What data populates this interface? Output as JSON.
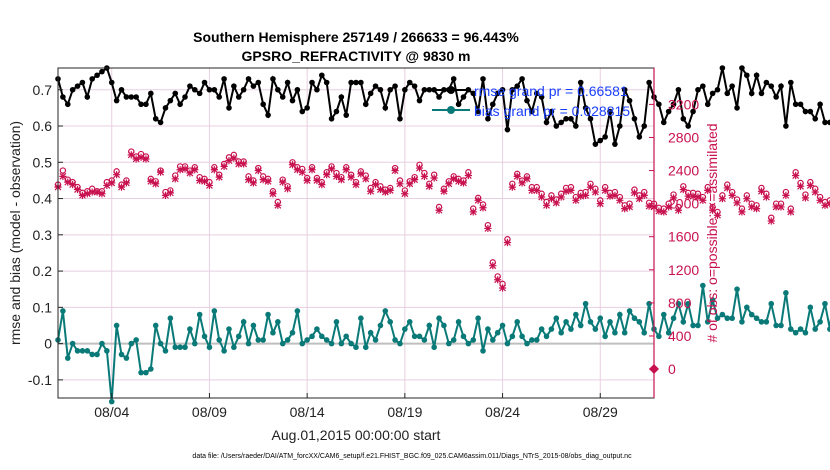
{
  "chart_data": {
    "type": "line",
    "title_line1": "Southern Hemisphere 257149 / 266633 = 96.443%",
    "title_line2": "GPSRO_REFRACTIVITY @ 9830 m",
    "xlabel": "Aug.01,2015 00:00:00 start",
    "ylabel_left": "rmse and bias (model - observation)",
    "ylabel_right": "# of obs: o=possible; ×=assimilated",
    "footer": "data file: /Users/raeder/DAI/ATM_forcXX/CAM6_setup/f.e21.FHIST_BGC.f09_025.CAM6assim.011/Diags_NTrS_2015-08/obs_diag_output.nc",
    "x_range": [
      1.25,
      31.75
    ],
    "xticks": [
      {
        "value": 4,
        "label": "08/04"
      },
      {
        "value": 9,
        "label": "08/09"
      },
      {
        "value": 14,
        "label": "08/14"
      },
      {
        "value": 19,
        "label": "08/19"
      },
      {
        "value": 24,
        "label": "08/24"
      },
      {
        "value": 29,
        "label": "08/29"
      }
    ],
    "ylim_left": [
      -0.15,
      0.76
    ],
    "yticks_left": [
      "-0.1",
      "0",
      "0.1",
      "0.2",
      "0.3",
      "0.4",
      "0.5",
      "0.6",
      "0.7"
    ],
    "ylim_right": [
      -350,
      3640
    ],
    "yticks_right": [
      "0",
      "400",
      "800",
      "1200",
      "1600",
      "2000",
      "2400",
      "2800",
      "3200"
    ],
    "zero_line": 0,
    "legend": [
      {
        "label": "rmse grand pr = 0.66581",
        "color": "#000000"
      },
      {
        "label": "bias grand pr = 0.028815",
        "color": "#0a7a78"
      }
    ],
    "colors": {
      "rmse": "#000000",
      "bias": "#0a7a78",
      "obs": "#c8114f",
      "zero": "#bfbfbf",
      "grid": "#e8cfe0"
    },
    "series": [
      {
        "name": "rmse",
        "axis": "left",
        "step": 0.25,
        "x_start": 1.25,
        "values": [
          0.73,
          0.68,
          0.66,
          0.7,
          0.71,
          0.72,
          0.68,
          0.73,
          0.74,
          0.75,
          0.76,
          0.72,
          0.67,
          0.7,
          0.68,
          0.68,
          0.68,
          0.66,
          0.66,
          0.69,
          0.62,
          0.61,
          0.65,
          0.67,
          0.69,
          0.66,
          0.68,
          0.71,
          0.7,
          0.69,
          0.72,
          0.7,
          0.7,
          0.68,
          0.73,
          0.65,
          0.71,
          0.68,
          0.7,
          0.73,
          0.71,
          0.72,
          0.66,
          0.63,
          0.73,
          0.7,
          0.68,
          0.72,
          0.67,
          0.7,
          0.64,
          0.65,
          0.72,
          0.7,
          0.74,
          0.72,
          0.62,
          0.64,
          0.68,
          0.63,
          0.72,
          0.72,
          0.72,
          0.66,
          0.69,
          0.71,
          0.7,
          0.65,
          0.7,
          0.71,
          0.62,
          0.7,
          0.72,
          0.71,
          0.67,
          0.7,
          0.7,
          0.7,
          0.68,
          0.7,
          0.7,
          0.73,
          0.66,
          0.68,
          0.7,
          0.69,
          0.64,
          0.73,
          0.62,
          0.66,
          0.69,
          0.7,
          0.59,
          0.7,
          0.71,
          0.73,
          0.67,
          0.64,
          0.69,
          0.68,
          0.61,
          0.64,
          0.6,
          0.61,
          0.62,
          0.62,
          0.6,
          0.72,
          0.65,
          0.62,
          0.55,
          0.56,
          0.57,
          0.64,
          0.55,
          0.6,
          0.7,
          0.67,
          0.62,
          0.57,
          0.6,
          0.72,
          0.68,
          0.66,
          0.61,
          0.64,
          0.66,
          0.7,
          0.62,
          0.6,
          0.64,
          0.7,
          0.71,
          0.66,
          0.69,
          0.7,
          0.76,
          0.69,
          0.71,
          0.65,
          0.76,
          0.74,
          0.69,
          0.74,
          0.69,
          0.72,
          0.71,
          0.68,
          0.71,
          0.6,
          0.72,
          0.66,
          0.66,
          0.64,
          0.64,
          0.62,
          0.66,
          0.61,
          0.61,
          0.6,
          0.58,
          0.58
        ]
      },
      {
        "name": "bias",
        "axis": "left",
        "step": 0.25,
        "x_start": 1.25,
        "values": [
          0.01,
          0.09,
          -0.04,
          0.0,
          -0.02,
          -0.02,
          -0.02,
          -0.03,
          -0.03,
          0.0,
          -0.02,
          -0.16,
          0.05,
          -0.03,
          -0.04,
          0.0,
          0.01,
          -0.08,
          -0.08,
          -0.07,
          0.05,
          0.0,
          -0.02,
          0.07,
          -0.01,
          -0.01,
          -0.01,
          0.04,
          0.0,
          0.08,
          0.02,
          -0.01,
          0.09,
          0.01,
          -0.02,
          0.04,
          -0.01,
          0.02,
          0.06,
          0.0,
          0.05,
          0.01,
          0.01,
          0.08,
          0.03,
          0.06,
          0.0,
          0.01,
          0.03,
          0.09,
          0.0,
          0.01,
          0.02,
          0.04,
          0.02,
          0.01,
          0.0,
          0.06,
          0.0,
          0.02,
          0.0,
          -0.01,
          0.07,
          -0.01,
          0.03,
          0.01,
          0.05,
          0.09,
          0.06,
          0.01,
          0.0,
          0.04,
          0.06,
          0.02,
          0.02,
          0.01,
          0.05,
          -0.01,
          0.07,
          0.05,
          0.0,
          0.01,
          0.06,
          0.02,
          0.0,
          0.01,
          0.07,
          -0.02,
          0.04,
          0.01,
          0.03,
          0.05,
          0.0,
          0.02,
          0.06,
          0.02,
          0.0,
          0.01,
          0.01,
          0.04,
          0.02,
          0.04,
          0.07,
          0.03,
          0.06,
          0.04,
          0.08,
          0.05,
          0.11,
          0.06,
          0.04,
          0.07,
          0.02,
          0.06,
          0.03,
          0.08,
          0.03,
          0.09,
          0.07,
          0.06,
          0.03,
          0.11,
          0.04,
          0.02,
          0.08,
          0.03,
          0.07,
          0.11,
          0.06,
          0.11,
          0.05,
          0.05,
          0.16,
          0.06,
          0.12,
          0.07,
          0.08,
          0.07,
          0.07,
          0.15,
          0.06,
          0.1,
          0.08,
          0.07,
          0.06,
          0.06,
          0.11,
          0.05,
          0.05,
          0.14,
          0.04,
          0.03,
          0.04,
          0.03,
          0.1,
          0.04,
          0.06,
          0.11,
          0.04,
          0.17,
          0.02,
          0.04
        ]
      },
      {
        "name": "obs possible",
        "axis": "right",
        "marker": "circle",
        "step": 0.25,
        "x_start": 1.25,
        "values": [
          2230,
          2400,
          2290,
          2260,
          2200,
          2130,
          2150,
          2180,
          2150,
          2150,
          2260,
          2280,
          2390,
          2230,
          2280,
          2630,
          2570,
          2600,
          2570,
          2300,
          2270,
          2400,
          2140,
          2160,
          2340,
          2450,
          2450,
          2400,
          2440,
          2320,
          2300,
          2260,
          2440,
          2350,
          2480,
          2560,
          2590,
          2510,
          2510,
          2330,
          2280,
          2430,
          2330,
          2300,
          2150,
          2020,
          2290,
          2210,
          2500,
          2440,
          2420,
          2310,
          2440,
          2310,
          2260,
          2380,
          2450,
          2370,
          2320,
          2440,
          2350,
          2260,
          2390,
          2340,
          2190,
          2260,
          2210,
          2170,
          2190,
          2430,
          2280,
          2160,
          2270,
          2320,
          2470,
          2370,
          2240,
          2350,
          1960,
          2180,
          2270,
          2330,
          2300,
          2280,
          2380,
          1940,
          2070,
          1990,
          1740,
          1290,
          1120,
          1030,
          1570,
          2240,
          2360,
          2280,
          2330,
          2200,
          2200,
          2120,
          2020,
          2100,
          2050,
          2120,
          2190,
          2200,
          2080,
          2130,
          2140,
          2240,
          2180,
          2040,
          2200,
          2130,
          2140,
          2080,
          1980,
          2000,
          2170,
          2100,
          2140,
          2010,
          2000,
          1950,
          1940,
          2000,
          2110,
          1960,
          2210,
          2130,
          2130,
          2120,
          2080,
          2200,
          1960,
          1900,
          2100,
          2230,
          2140,
          2050,
          1940,
          2100,
          2000,
          1980,
          2190,
          2120,
          1830,
          2000,
          2000,
          2140,
          1940,
          2380,
          2250,
          2110,
          2260,
          2180,
          2080,
          2020,
          2040,
          2010,
          2070,
          2080,
          2110,
          2030
        ]
      },
      {
        "name": "obs assimilated",
        "axis": "right",
        "marker": "x",
        "step": 0.25,
        "x_start": 1.25,
        "values": [
          2200,
          2330,
          2260,
          2230,
          2170,
          2100,
          2120,
          2140,
          2140,
          2120,
          2220,
          2250,
          2350,
          2200,
          2250,
          2590,
          2540,
          2560,
          2540,
          2270,
          2240,
          2380,
          2100,
          2130,
          2300,
          2410,
          2420,
          2370,
          2410,
          2280,
          2270,
          2220,
          2410,
          2320,
          2450,
          2520,
          2550,
          2480,
          2480,
          2290,
          2250,
          2400,
          2290,
          2270,
          2120,
          1980,
          2260,
          2180,
          2470,
          2410,
          2380,
          2280,
          2410,
          2280,
          2230,
          2350,
          2420,
          2330,
          2290,
          2410,
          2320,
          2230,
          2360,
          2300,
          2150,
          2230,
          2170,
          2140,
          2160,
          2400,
          2240,
          2120,
          2240,
          2290,
          2430,
          2330,
          2210,
          2310,
          1920,
          2150,
          2240,
          2300,
          2270,
          2250,
          2340,
          1900,
          2040,
          1950,
          1700,
          1250,
          1080,
          980,
          1530,
          2200,
          2330,
          2250,
          2300,
          2160,
          2160,
          2080,
          1980,
          2060,
          2010,
          2080,
          2150,
          2160,
          2040,
          2090,
          2100,
          2200,
          2140,
          2000,
          2160,
          2090,
          2100,
          2040,
          1940,
          1960,
          2130,
          2060,
          2100,
          1970,
          1960,
          1910,
          1900,
          1960,
          2070,
          1920,
          2170,
          2090,
          2090,
          2080,
          2040,
          2160,
          1920,
          1860,
          2060,
          2190,
          2100,
          2010,
          1900,
          2060,
          1960,
          1940,
          2150,
          2080,
          1790,
          1960,
          1960,
          2100,
          1900,
          2340,
          2210,
          2070,
          2220,
          2140,
          2040,
          1980,
          2000,
          1970,
          2030,
          2040,
          2070,
          1990
        ]
      },
      {
        "name": "obs total marker",
        "axis": "right",
        "marker": "diamond",
        "points": [
          {
            "x": 31.75,
            "y": 0
          }
        ]
      }
    ]
  }
}
